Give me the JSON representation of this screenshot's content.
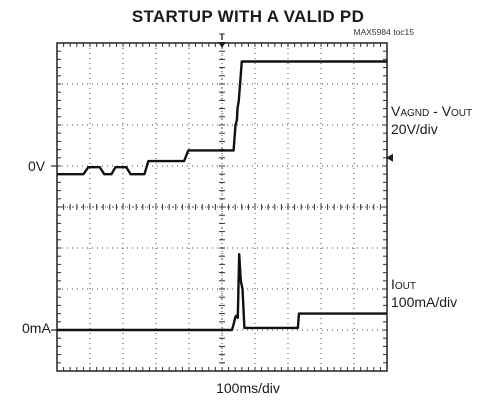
{
  "chart_data": {
    "type": "line",
    "title": "STARTUP WITH A VALID PD",
    "figure_id": "MAX5984 toc15",
    "xlabel": "100ms/div",
    "x_unit": "ms",
    "xlim": [
      0,
      1000
    ],
    "grid": true,
    "grid_divisions": {
      "x": 10,
      "y": 8
    },
    "ylim_div": [
      -4,
      4
    ],
    "series": [
      {
        "name_main": "V",
        "name_sub1": "AGND",
        "name_mid": " - V",
        "name_sub2": "OUT",
        "scale": "20V/div",
        "zero_label": "0V",
        "zero_level_div": 1.0,
        "color": "#111111",
        "points": [
          [
            0,
            -0.2
          ],
          [
            80,
            -0.2
          ],
          [
            95,
            -0.03
          ],
          [
            130,
            -0.03
          ],
          [
            143,
            -0.2
          ],
          [
            165,
            -0.2
          ],
          [
            177,
            -0.03
          ],
          [
            210,
            -0.03
          ],
          [
            223,
            -0.2
          ],
          [
            265,
            -0.2
          ],
          [
            277,
            0.12
          ],
          [
            385,
            0.12
          ],
          [
            398,
            0.38
          ],
          [
            535,
            0.38
          ],
          [
            541,
            1.0
          ],
          [
            545,
            1.12
          ],
          [
            547,
            1.4
          ],
          [
            551,
            1.6
          ],
          [
            560,
            2.55
          ],
          [
            1000,
            2.55
          ]
        ]
      },
      {
        "name_main": "I",
        "name_sub1": "OUT",
        "scale": "100mA/div",
        "zero_label": "0mA",
        "zero_level_div": -3.0,
        "color": "#111111",
        "points": [
          [
            0,
            0
          ],
          [
            530,
            0
          ],
          [
            534,
            0.1
          ],
          [
            540,
            0.3
          ],
          [
            543,
            0.35
          ],
          [
            548,
            0.3
          ],
          [
            552,
            1.85
          ],
          [
            557,
            1.2
          ],
          [
            562,
            1.0
          ],
          [
            568,
            0.05
          ],
          [
            570,
            0.05
          ],
          [
            730,
            0.05
          ],
          [
            733,
            0.4
          ],
          [
            1000,
            0.4
          ]
        ]
      }
    ],
    "trigger_marker": "T"
  }
}
